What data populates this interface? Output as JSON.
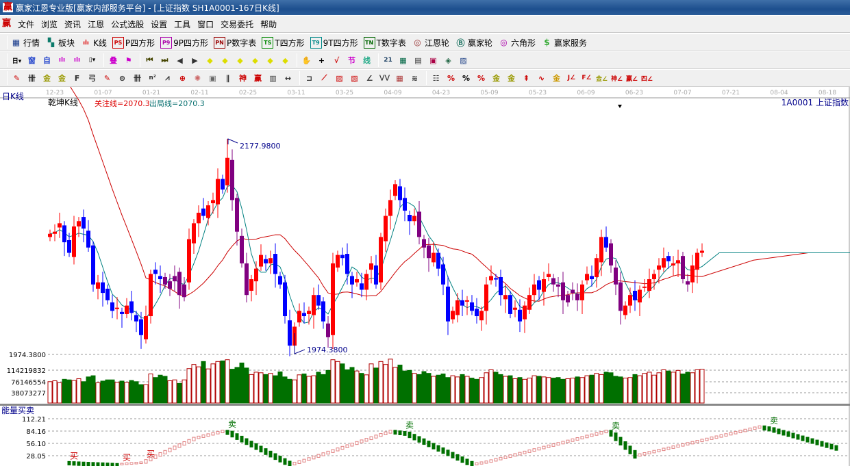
{
  "window": {
    "title": "赢家江恩专业版[赢家内部服务平台] - [上证指数  SH1A0001-167日K线]",
    "logo": "赢"
  },
  "menu": [
    "文件",
    "浏览",
    "资讯",
    "江恩",
    "公式选股",
    "设置",
    "工具",
    "窗口",
    "交易委托",
    "帮助"
  ],
  "toolbar1": [
    {
      "icon": "quote-table-icon",
      "glyph": "▦",
      "color": "#1a3c8c",
      "label": "行情"
    },
    {
      "icon": "sector-blocks-icon",
      "glyph": "▚",
      "color": "#0a7a6a",
      "label": "板块"
    },
    {
      "icon": "kline-icon",
      "glyph": "ıİı",
      "color": "#d00",
      "label": "K线"
    },
    {
      "icon": "ps-icon",
      "glyph": "PS",
      "color": "#c00",
      "label": "P四方形"
    },
    {
      "icon": "p9-icon",
      "glyph": "P9",
      "color": "#a0a",
      "label": "9P四方形"
    },
    {
      "icon": "pn-icon",
      "glyph": "PN",
      "color": "#900",
      "label": "P数字表"
    },
    {
      "icon": "ts-icon",
      "glyph": "TS",
      "color": "#080",
      "label": "T四方形"
    },
    {
      "icon": "t9-icon",
      "glyph": "T9",
      "color": "#088",
      "label": "9T四方形"
    },
    {
      "icon": "tn-icon",
      "glyph": "TN",
      "color": "#060",
      "label": "T数字表"
    },
    {
      "icon": "gann-wheel-icon",
      "glyph": "◎",
      "color": "#933",
      "label": "江恩轮"
    },
    {
      "icon": "big-wheel-icon",
      "glyph": "Ⓑ",
      "color": "#276",
      "label": "赢家轮"
    },
    {
      "icon": "hexagon-icon",
      "glyph": "◎",
      "color": "#a0a",
      "label": "六角形"
    },
    {
      "icon": "dollar-icon",
      "glyph": "$",
      "color": "#3a3",
      "label": "赢家服务"
    }
  ],
  "toolbar2": [
    {
      "icon": "period-day-dropdown-icon",
      "glyph": "日▾",
      "color": "#000"
    },
    {
      "icon": "window-icon",
      "glyph": "窗",
      "color": "#24c"
    },
    {
      "icon": "custom-icon",
      "glyph": "自",
      "color": "#24c"
    },
    {
      "icon": "bars-3-icon",
      "glyph": "ılı",
      "color": "#c0c"
    },
    {
      "icon": "bars-9-icon",
      "glyph": "ılı",
      "color": "#c0c"
    },
    {
      "icon": "candle-dropdown-icon",
      "glyph": "▯▾",
      "color": "#000"
    },
    {
      "sep": true
    },
    {
      "icon": "overlay-icon",
      "glyph": "叠",
      "color": "#c0c"
    },
    {
      "icon": "flag-icon",
      "glyph": "⚑",
      "color": "#c0c"
    },
    {
      "sep": true
    },
    {
      "icon": "first-icon",
      "glyph": "⏮",
      "color": "#440"
    },
    {
      "icon": "last-icon",
      "glyph": "⏭",
      "color": "#440"
    },
    {
      "icon": "left-arrow-icon",
      "glyph": "◀",
      "color": "#333"
    },
    {
      "icon": "right-arrow-icon",
      "glyph": "▶",
      "color": "#333"
    },
    {
      "icon": "zoom-left-icon",
      "glyph": "◆",
      "color": "#dd0"
    },
    {
      "icon": "zoom-right-icon",
      "glyph": "◆",
      "color": "#dd0"
    },
    {
      "icon": "expand-h-icon",
      "glyph": "◆",
      "color": "#dd0"
    },
    {
      "icon": "shrink-h-icon",
      "glyph": "◆",
      "color": "#dd0"
    },
    {
      "icon": "expand-all-icon",
      "glyph": "◆",
      "color": "#dd0"
    },
    {
      "icon": "expand-v-icon",
      "glyph": "◆",
      "color": "#dd0"
    },
    {
      "sep": true
    },
    {
      "icon": "hand-icon",
      "glyph": "✋",
      "color": "#333"
    },
    {
      "icon": "crosshair-icon",
      "glyph": "+",
      "color": "#000"
    },
    {
      "icon": "vertex-icon",
      "glyph": "√",
      "color": "#c00"
    },
    {
      "icon": "node-icon",
      "glyph": "节",
      "color": "#c0c"
    },
    {
      "icon": "line-icon",
      "glyph": "线",
      "color": "#2a8"
    },
    {
      "sep": true
    },
    {
      "icon": "calendar-icon",
      "glyph": "21",
      "color": "#246"
    },
    {
      "icon": "calculator-icon",
      "glyph": "▦",
      "color": "#064"
    },
    {
      "icon": "notebook-icon",
      "glyph": "▤",
      "color": "#333"
    },
    {
      "icon": "save-icon",
      "glyph": "▣",
      "color": "#a04"
    },
    {
      "icon": "network-icon",
      "glyph": "◈",
      "color": "#264"
    },
    {
      "icon": "print-icon",
      "glyph": "▨",
      "color": "#248"
    }
  ],
  "toolbar3": [
    {
      "icon": "pen-icon",
      "glyph": "✎",
      "color": "#c00"
    },
    {
      "icon": "grid-icon",
      "glyph": "卌",
      "color": "#333"
    },
    {
      "icon": "gold-1-icon",
      "glyph": "金",
      "color": "#990"
    },
    {
      "icon": "gold-2-icon",
      "glyph": "金",
      "color": "#990"
    },
    {
      "icon": "f-lines-icon",
      "glyph": "F",
      "color": "#333"
    },
    {
      "icon": "spiral-icon",
      "glyph": "弓",
      "color": "#333"
    },
    {
      "icon": "pen-grid-icon",
      "glyph": "✎",
      "color": "#c00"
    },
    {
      "icon": "circle-grid-icon",
      "glyph": "⊜",
      "color": "#333"
    },
    {
      "icon": "hash-icon",
      "glyph": "卌",
      "color": "#333"
    },
    {
      "icon": "n2-icon",
      "glyph": "n²",
      "color": "#333"
    },
    {
      "icon": "fan-icon",
      "glyph": "⩘",
      "color": "#333"
    },
    {
      "icon": "target-icon",
      "glyph": "⊕",
      "color": "#c00"
    },
    {
      "icon": "radial-icon",
      "glyph": "✺",
      "color": "#c66"
    },
    {
      "icon": "square-target-icon",
      "glyph": "▣",
      "color": "#666"
    },
    {
      "icon": "parallel-icon",
      "glyph": "∥",
      "color": "#333"
    },
    {
      "icon": "shen-icon",
      "glyph": "神",
      "color": "#c00"
    },
    {
      "icon": "ying-icon",
      "glyph": "赢",
      "color": "#c00"
    },
    {
      "icon": "fib-time-icon",
      "glyph": "▥",
      "color": "#333"
    },
    {
      "icon": "width-icon",
      "glyph": "↔",
      "color": "#333"
    },
    {
      "sep": true
    },
    {
      "icon": "box-icon",
      "glyph": "⊐",
      "color": "#333"
    },
    {
      "icon": "speed-fan-icon",
      "glyph": "⟋",
      "color": "#c00"
    },
    {
      "icon": "gann-box-icon",
      "glyph": "▨",
      "color": "#c00"
    },
    {
      "icon": "gann-square-icon",
      "glyph": "▧",
      "color": "#c00"
    },
    {
      "icon": "angle-icon",
      "glyph": "∠",
      "color": "#333"
    },
    {
      "icon": "wave-icon",
      "glyph": "⋁⋁",
      "color": "#333"
    },
    {
      "icon": "table-grid-icon",
      "glyph": "▦",
      "color": "#a33"
    },
    {
      "icon": "stripes-icon",
      "glyph": "≋",
      "color": "#333"
    },
    {
      "sep": true
    },
    {
      "icon": "ruler-icon",
      "glyph": "☷",
      "color": "#333"
    },
    {
      "icon": "percent-fan-icon",
      "glyph": "%",
      "color": "#c00"
    },
    {
      "icon": "percent-icon",
      "glyph": "%",
      "color": "#000"
    },
    {
      "icon": "percent-lines-icon",
      "glyph": "%",
      "color": "#c00"
    },
    {
      "icon": "gold-circle-icon",
      "glyph": "金",
      "color": "#990"
    },
    {
      "icon": "gold-lines-icon",
      "glyph": "金",
      "color": "#990"
    },
    {
      "icon": "brush-icon",
      "glyph": "⇞",
      "color": "#c00"
    },
    {
      "icon": "sine-icon",
      "glyph": "∿",
      "color": "#c00"
    },
    {
      "icon": "gold-bar-icon",
      "glyph": "金",
      "color": "#c90"
    },
    {
      "icon": "j-angle-icon",
      "glyph": "J∠",
      "color": "#c00"
    },
    {
      "icon": "f-angle-icon",
      "glyph": "F∠",
      "color": "#c00"
    },
    {
      "icon": "gold-angle-icon",
      "glyph": "金∠",
      "color": "#990"
    },
    {
      "icon": "shen-angle-icon",
      "glyph": "神∠",
      "color": "#c00"
    },
    {
      "icon": "ying-angle-icon",
      "glyph": "赢∠",
      "color": "#c00"
    },
    {
      "icon": "four-angle-icon",
      "glyph": "四∠",
      "color": "#c00"
    }
  ],
  "chart_data": {
    "type": "candlestick",
    "period_label": "日K线",
    "indicator_name": "乾坤K线",
    "focus_line": "关注线=2070.3",
    "exit_line": "出局线=2070.3",
    "symbol": "1A0001  上证指数",
    "x_ticks": [
      "12-23",
      "01-07",
      "01-21",
      "02-11",
      "02-25",
      "03-11",
      "03-25",
      "04-09",
      "04-23",
      "05-09",
      "05-23",
      "06-09",
      "06-23",
      "07-07",
      "07-21",
      "08-04",
      "08-18"
    ],
    "high_marker": {
      "label": "2177.9800",
      "value": 2177.98,
      "index": 37
    },
    "low_marker": {
      "label": "1974.3800",
      "value": 1974.38,
      "index": 51
    },
    "closes": [
      2088,
      2090,
      2098,
      2080,
      2070,
      2095,
      2100,
      2093,
      2075,
      2040,
      2042,
      2032,
      2025,
      2015,
      2018,
      2012,
      2020,
      2013,
      2005,
      1992,
      2010,
      2050,
      2050,
      2045,
      2040,
      2043,
      2048,
      2030,
      2040,
      2083,
      2098,
      2108,
      2105,
      2115,
      2120,
      2140,
      2130,
      2160,
      2120,
      2090,
      2060,
      2030,
      2045,
      2055,
      2068,
      2060,
      2065,
      2050,
      2040,
      2010,
      1982,
      2000,
      2015,
      2010,
      2015,
      2030,
      2020,
      2005,
      1990,
      2060,
      2068,
      2065,
      2050,
      2040,
      2045,
      2035,
      2050,
      2060,
      2040,
      2085,
      2105,
      2120,
      2135,
      2120,
      2110,
      2100,
      2105,
      2085,
      2075,
      2065,
      2070,
      2055,
      2040,
      2005,
      2015,
      2025,
      2020,
      2025,
      2015,
      2010,
      2015,
      2040,
      2048,
      2045,
      2030,
      2030,
      2012,
      2018,
      2005,
      2020,
      2030,
      2040,
      2035,
      2045,
      2050,
      2040,
      2038,
      2025,
      2030,
      2035,
      2025,
      2040,
      2050,
      2045,
      2065,
      2085,
      2075,
      2058,
      2040,
      2015,
      2020,
      2030,
      2025,
      2035,
      2038,
      2045,
      2050,
      2058,
      2065,
      2062,
      2060,
      2063,
      2045,
      2040,
      2058,
      2070,
      2072
    ],
    "purple_ranges": [
      [
        24,
        28
      ],
      [
        38,
        41
      ],
      [
        58,
        58
      ],
      [
        77,
        79
      ],
      [
        105,
        110
      ],
      [
        117,
        119
      ],
      [
        132,
        133
      ]
    ],
    "volume": {
      "axis_labels": [
        "1974.3800",
        "114219832",
        "76146554",
        "38073277"
      ],
      "ticks": [
        114219832,
        76146554,
        38073277
      ],
      "values_millions": [
        72,
        75,
        68,
        80,
        78,
        76,
        82,
        72,
        88,
        92,
        68,
        74,
        78,
        78,
        70,
        74,
        70,
        76,
        72,
        62,
        62,
        98,
        86,
        94,
        90,
        75,
        78,
        66,
        78,
        116,
        130,
        122,
        140,
        115,
        132,
        140,
        142,
        146,
        114,
        120,
        135,
        118,
        96,
        104,
        102,
        96,
        100,
        92,
        105,
        88,
        80,
        78,
        95,
        98,
        90,
        92,
        104,
        96,
        110,
        146,
        140,
        132,
        112,
        120,
        108,
        100,
        95,
        132,
        118,
        140,
        130,
        148,
        120,
        128,
        108,
        110,
        100,
        96,
        106,
        100,
        90,
        94,
        98,
        86,
        92,
        88,
        96,
        90,
        84,
        80,
        86,
        102,
        112,
        104,
        96,
        90,
        92,
        82,
        86,
        80,
        84,
        92,
        90,
        88,
        86,
        84,
        86,
        80,
        82,
        84,
        88,
        86,
        92,
        94,
        100,
        96,
        104,
        102,
        90,
        88,
        84,
        86,
        96,
        92,
        100,
        104,
        94,
        102,
        112,
        108,
        104,
        110,
        98,
        104,
        102,
        112,
        114
      ]
    },
    "energy": {
      "title": "能量买卖",
      "ticks": [
        "112.21",
        "84.16",
        "56.10",
        "28.05"
      ],
      "keypoints": [
        [
          4,
          15
        ],
        [
          15,
          10
        ],
        [
          20,
          14
        ],
        [
          24,
          35
        ],
        [
          31,
          70
        ],
        [
          37,
          86
        ],
        [
          38,
          84
        ],
        [
          51,
          10
        ],
        [
          54,
          20
        ],
        [
          72,
          86
        ],
        [
          75,
          82
        ],
        [
          89,
          10
        ],
        [
          92,
          16
        ],
        [
          117,
          86
        ],
        [
          118,
          80
        ],
        [
          123,
          30
        ],
        [
          149,
          96
        ],
        [
          151,
          92
        ],
        [
          165,
          48
        ]
      ],
      "signals": [
        {
          "index": 5,
          "label": "买"
        },
        {
          "index": 16,
          "label": "买"
        },
        {
          "index": 21,
          "label": "买"
        },
        {
          "index": 38,
          "label": "卖"
        },
        {
          "index": 75,
          "label": "卖"
        },
        {
          "index": 118,
          "label": "卖"
        },
        {
          "index": 151,
          "label": "卖"
        }
      ]
    },
    "colors": {
      "up": "#ff0000",
      "down": "#0000ff",
      "special": "#800080",
      "vol_up": "#b00000",
      "vol_down": "#007000",
      "ma_short": "#008080",
      "ma_long": "#cc0000",
      "buy": "#cc0000",
      "sell": "#007000"
    }
  }
}
